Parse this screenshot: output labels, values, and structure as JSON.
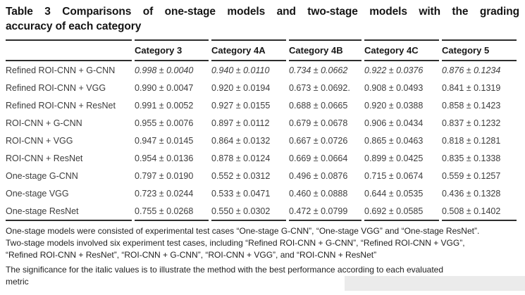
{
  "title": {
    "label": "Table 3",
    "lines": [
      "Table 3 Comparisons of one-stage models and two-stage models with the grading",
      "accuracy of each category"
    ]
  },
  "table": {
    "columns": [
      "",
      "Category 3",
      "Category 4A",
      "Category 4B",
      "Category 4C",
      "Category 5"
    ],
    "rows": [
      {
        "model": "Refined ROI-CNN + G-CNN",
        "best": true,
        "values": [
          "0.998 ± 0.0040",
          "0.940 ± 0.0110",
          "0.734 ± 0.0662",
          "0.922 ± 0.0376",
          "0.876 ± 0.1234"
        ]
      },
      {
        "model": "Refined ROI-CNN + VGG",
        "best": false,
        "values": [
          "0.990 ± 0.0047",
          "0.920 ± 0.0194",
          "0.673 ± 0.0692.",
          "0.908 ± 0.0493",
          "0.841 ± 0.1319"
        ]
      },
      {
        "model": "Refined ROI-CNN + ResNet",
        "best": false,
        "values": [
          "0.991 ± 0.0052",
          "0.927 ± 0.0155",
          "0.688 ± 0.0665",
          "0.920 ± 0.0388",
          "0.858 ± 0.1423"
        ]
      },
      {
        "model": "ROI-CNN + G-CNN",
        "best": false,
        "values": [
          "0.955 ± 0.0076",
          "0.897 ± 0.0112",
          "0.679 ± 0.0678",
          "0.906 ± 0.0434",
          "0.837 ± 0.1232"
        ]
      },
      {
        "model": "ROI-CNN + VGG",
        "best": false,
        "values": [
          "0.947 ± 0.0145",
          "0.864 ± 0.0132",
          "0.667 ± 0.0726",
          "0.865 ± 0.0463",
          "0.818 ± 0.1281"
        ]
      },
      {
        "model": "ROI-CNN + ResNet",
        "best": false,
        "values": [
          "0.954 ± 0.0136",
          "0.878 ± 0.0124",
          "0.669 ± 0.0664",
          "0.899 ± 0.0425",
          "0.835 ± 0.1338"
        ]
      },
      {
        "model": "One-stage G-CNN",
        "best": false,
        "values": [
          "0.797 ± 0.0190",
          "0.552 ± 0.0312",
          "0.496 ± 0.0876",
          "0.715 ± 0.0674",
          "0.559 ± 0.1257"
        ]
      },
      {
        "model": "One-stage VGG",
        "best": false,
        "values": [
          "0.723 ± 0.0244",
          "0.533 ± 0.0471",
          "0.460 ± 0.0888",
          "0.644 ± 0.0535",
          "0.436 ± 0.1328"
        ]
      },
      {
        "model": "One-stage ResNet",
        "best": false,
        "values": [
          "0.755 ± 0.0268",
          "0.550 ± 0.0302",
          "0.472 ± 0.0799",
          "0.692 ± 0.0585",
          "0.508 ± 0.1402"
        ]
      }
    ]
  },
  "footnote": {
    "lines": [
      "One-stage models were consisted of experimental test cases “One-stage G-CNN”, “One-stage VGG” and “One-stage ResNet”.",
      "Two-stage models involved six experiment test cases, including “Refined ROI-CNN + G-CNN”, “Refined ROI-CNN + VGG”,",
      "“Refined ROI-CNN + ResNet”, “ROI-CNN + G-CNN”, “ROI-CNN + VGG”, and “ROI-CNN + ResNet”"
    ]
  },
  "significance": {
    "lines": [
      "The significance for the italic values is to illustrate the method with the best performance according to each evaluated",
      "metric"
    ]
  },
  "colors": {
    "rule": "#2d2d2d",
    "body_text": "#3d3d3d",
    "heading_text": "#141414"
  }
}
